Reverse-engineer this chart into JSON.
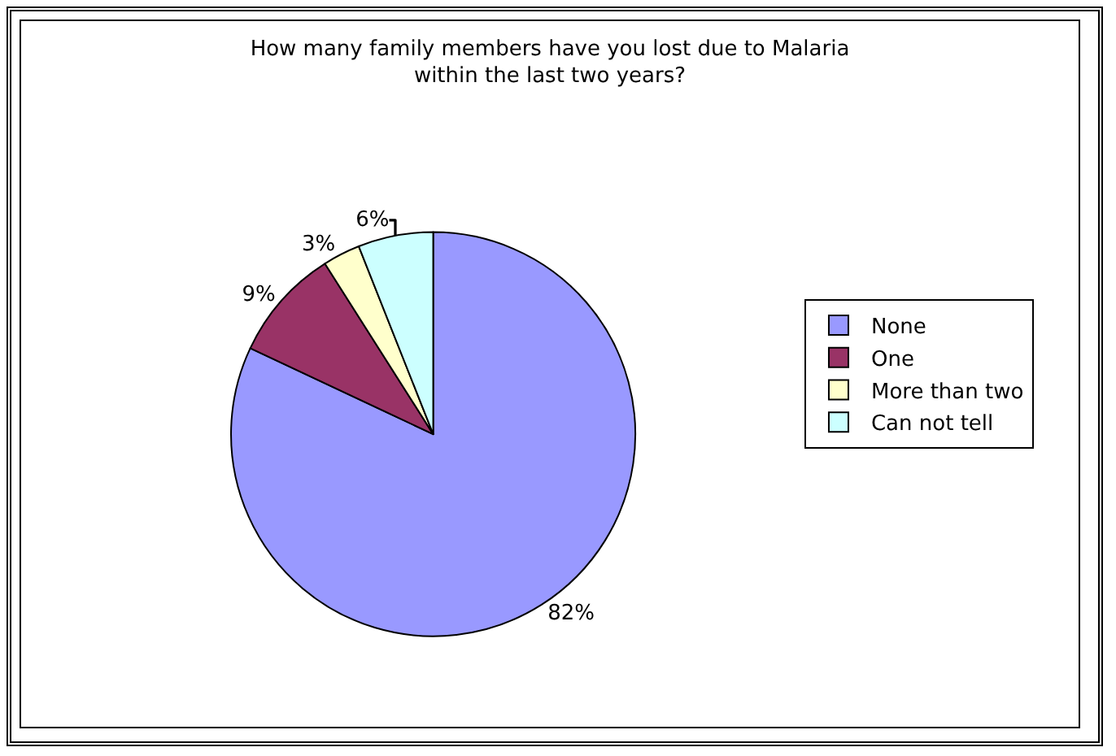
{
  "chart_data": {
    "type": "pie",
    "title": "How many family members have you lost due to Malaria within the last two years?",
    "categories": [
      "None",
      "One",
      "More than two",
      "Can not tell"
    ],
    "values": [
      82,
      9,
      3,
      6
    ],
    "colors": [
      "#9999ff",
      "#993366",
      "#ffffcc",
      "#ccffff"
    ],
    "value_labels": [
      "82%",
      "9%",
      "3%",
      "6%"
    ],
    "legend": "right"
  }
}
